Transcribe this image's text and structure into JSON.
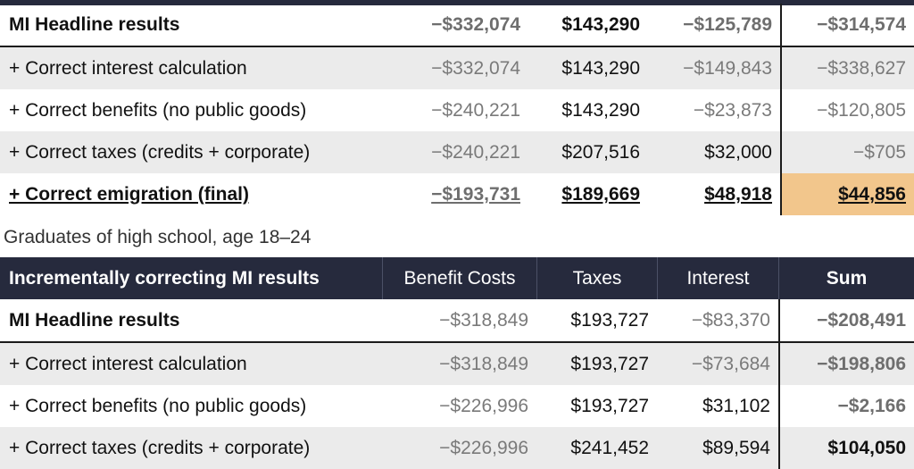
{
  "table1": {
    "rows": [
      {
        "label": "MI Headline results",
        "benefit": "−$332,074",
        "taxes": "$143,290",
        "interest": "−$125,789",
        "sum": "−$314,574"
      },
      {
        "label": "+ Correct interest calculation",
        "benefit": "−$332,074",
        "taxes": "$143,290",
        "interest": "−$149,843",
        "sum": "−$338,627"
      },
      {
        "label": "+ Correct benefits (no public goods)",
        "benefit": "−$240,221",
        "taxes": "$143,290",
        "interest": "−$23,873",
        "sum": "−$120,805"
      },
      {
        "label": "+ Correct taxes (credits + corporate)",
        "benefit": "−$240,221",
        "taxes": "$207,516",
        "interest": "$32,000",
        "sum": "−$705"
      },
      {
        "label": "+ Correct emigration (final)",
        "benefit": "−$193,731",
        "taxes": "$189,669",
        "interest": "$48,918",
        "sum": "$44,856"
      }
    ],
    "highlight_color": "#f2c68c"
  },
  "caption": "Graduates of high school, age 18–24",
  "table2": {
    "header": {
      "label": "Incrementally correcting MI results",
      "benefit": "Benefit Costs",
      "taxes": "Taxes",
      "interest": "Interest",
      "sum": "Sum"
    },
    "rows": [
      {
        "label": "MI Headline results",
        "benefit": "−$318,849",
        "taxes": "$193,727",
        "interest": "−$83,370",
        "sum": "−$208,491"
      },
      {
        "label": "+ Correct interest calculation",
        "benefit": "−$318,849",
        "taxes": "$193,727",
        "interest": "−$73,684",
        "sum": "−$198,806"
      },
      {
        "label": "+ Correct benefits (no public goods)",
        "benefit": "−$226,996",
        "taxes": "$193,727",
        "interest": "$31,102",
        "sum": "−$2,166"
      },
      {
        "label": "+ Correct taxes (credits + corporate)",
        "benefit": "−$226,996",
        "taxes": "$241,452",
        "interest": "$89,594",
        "sum": "$104,050"
      }
    ]
  },
  "colors": {
    "header_bg": "#262a3d",
    "row_alt_bg": "#ebebeb",
    "negative_text": "#7a7a7a"
  }
}
